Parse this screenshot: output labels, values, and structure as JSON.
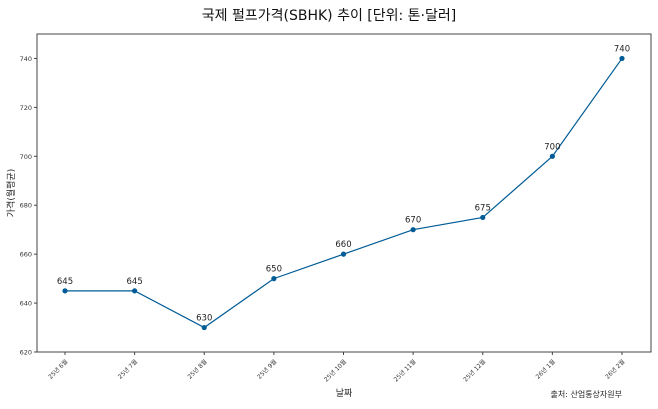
{
  "chart_data": {
    "type": "line",
    "title": "국제 펄프가격(SBHK) 추이  [단위: 톤·달러]",
    "xlabel": "날짜",
    "ylabel": "가격(월평균)",
    "categories": [
      "25년 6월",
      "25년 7월",
      "25년 8월",
      "25년 9월",
      "25년 10월",
      "25년 11월",
      "25년 12월",
      "26년 1월",
      "26년 2월"
    ],
    "series": [
      {
        "name": "SBHK",
        "values": [
          645,
          645,
          630,
          650,
          660,
          670,
          675,
          700,
          740
        ],
        "color": "#005b96"
      }
    ],
    "data_labels": [
      "645",
      "645",
      "630",
      "650",
      "660",
      "670",
      "675",
      "700",
      "740"
    ],
    "yticks": [
      620,
      640,
      660,
      680,
      700,
      720,
      740
    ],
    "ylim": [
      620,
      750
    ],
    "grid": false,
    "legend": null,
    "annotation": "출처: 산업통상자원부"
  },
  "colors": {
    "line": "#005b96",
    "marker": "#005b96",
    "axes": "#444444"
  }
}
